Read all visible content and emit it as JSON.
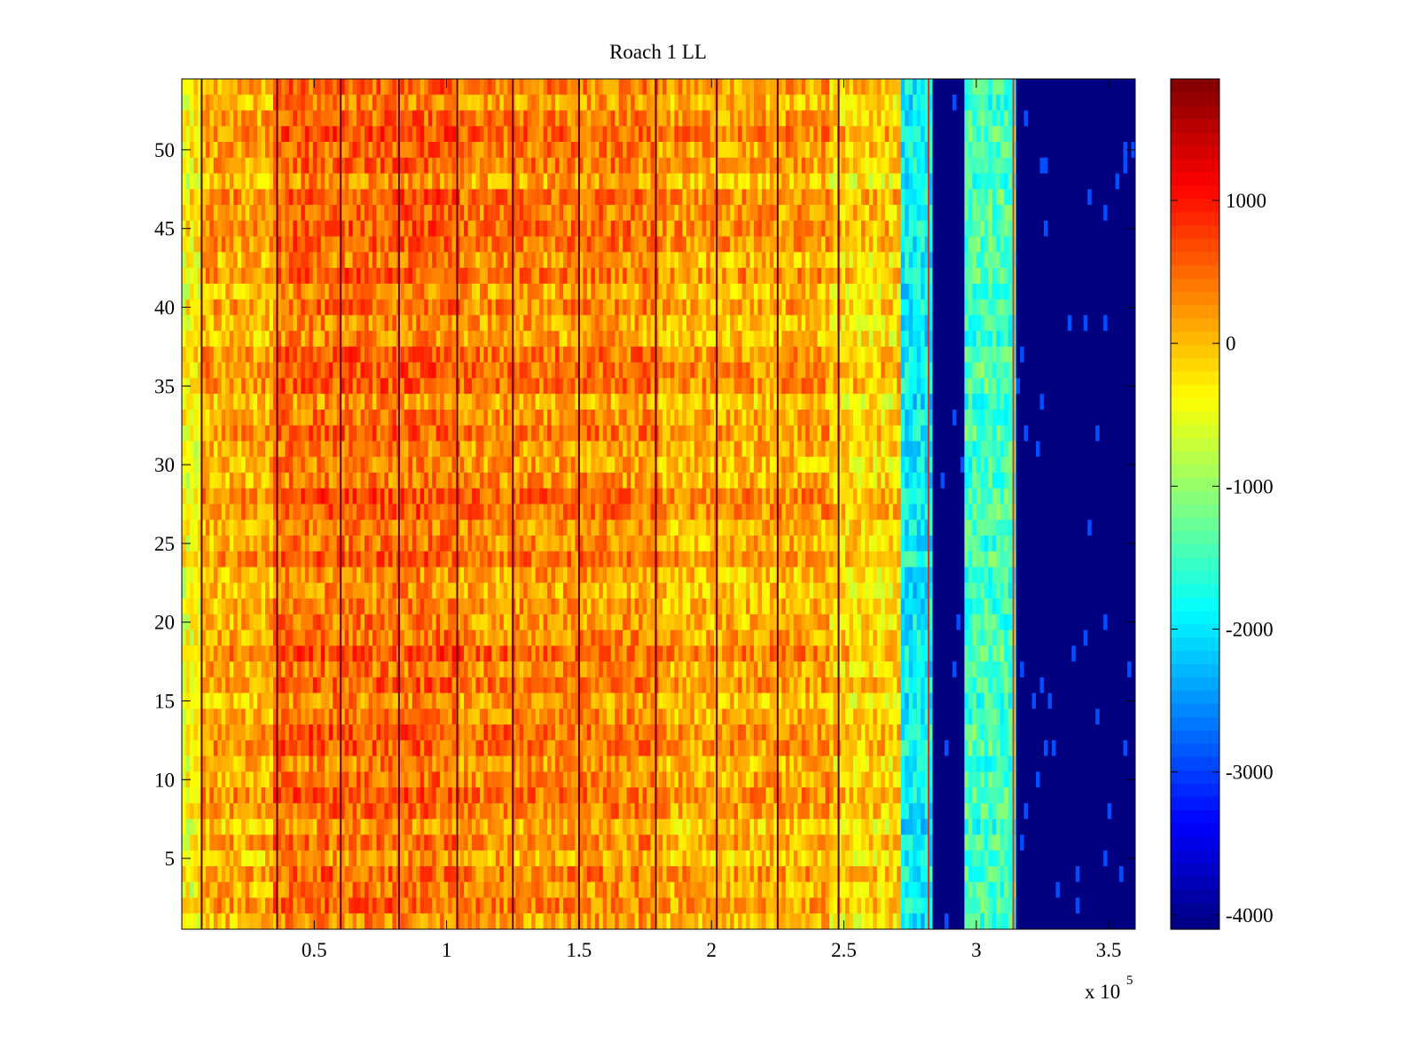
{
  "chart_data": {
    "type": "heatmap",
    "title": "Roach 1 LL",
    "xlabel": "",
    "ylabel": "",
    "x_multiplier_label": {
      "base": "x 10",
      "exponent": "5"
    },
    "xlim": [
      0,
      3.6
    ],
    "ylim": [
      0.5,
      54.5
    ],
    "x_ticks": [
      0.5,
      1,
      1.5,
      2,
      2.5,
      3,
      3.5
    ],
    "x_tick_labels": [
      "0.5",
      "1",
      "1.5",
      "2",
      "2.5",
      "3",
      "3.5"
    ],
    "y_ticks": [
      5,
      10,
      15,
      20,
      25,
      30,
      35,
      40,
      45,
      50
    ],
    "y_tick_labels": [
      "5",
      "10",
      "15",
      "20",
      "25",
      "30",
      "35",
      "40",
      "45",
      "50"
    ],
    "colormap": "jet",
    "clim": [
      -4100,
      1850
    ],
    "colorbar_ticks": [
      1000,
      0,
      -1000,
      -2000,
      -3000,
      -4000
    ],
    "colorbar_tick_labels": [
      "1000",
      "0",
      "-1000",
      "-2000",
      "-3000",
      "-4000"
    ],
    "grid": false,
    "rows": 54,
    "column_profile": [
      {
        "x_start": 0.0,
        "x_end": 0.07,
        "value": -400
      },
      {
        "x_start": 0.07,
        "x_end": 0.35,
        "value": 100
      },
      {
        "x_start": 0.35,
        "x_end": 1.05,
        "value": 450
      },
      {
        "x_start": 1.05,
        "x_end": 1.8,
        "value": 300
      },
      {
        "x_start": 1.8,
        "x_end": 2.45,
        "value": 100
      },
      {
        "x_start": 2.45,
        "x_end": 2.72,
        "value": -150
      },
      {
        "x_start": 2.72,
        "x_end": 2.83,
        "value": -1900
      },
      {
        "x_start": 2.83,
        "x_end": 2.95,
        "value": -4100
      },
      {
        "x_start": 2.95,
        "x_end": 3.15,
        "value": -1500
      },
      {
        "x_start": 3.15,
        "x_end": 3.6,
        "value": -4100
      }
    ],
    "dark_vertical_lines_x": [
      0.075,
      0.36,
      0.6,
      0.82,
      1.04,
      1.25,
      1.5,
      1.79,
      2.02,
      2.25,
      2.48
    ],
    "red_edge_lines_x": [
      2.82,
      3.14
    ]
  }
}
